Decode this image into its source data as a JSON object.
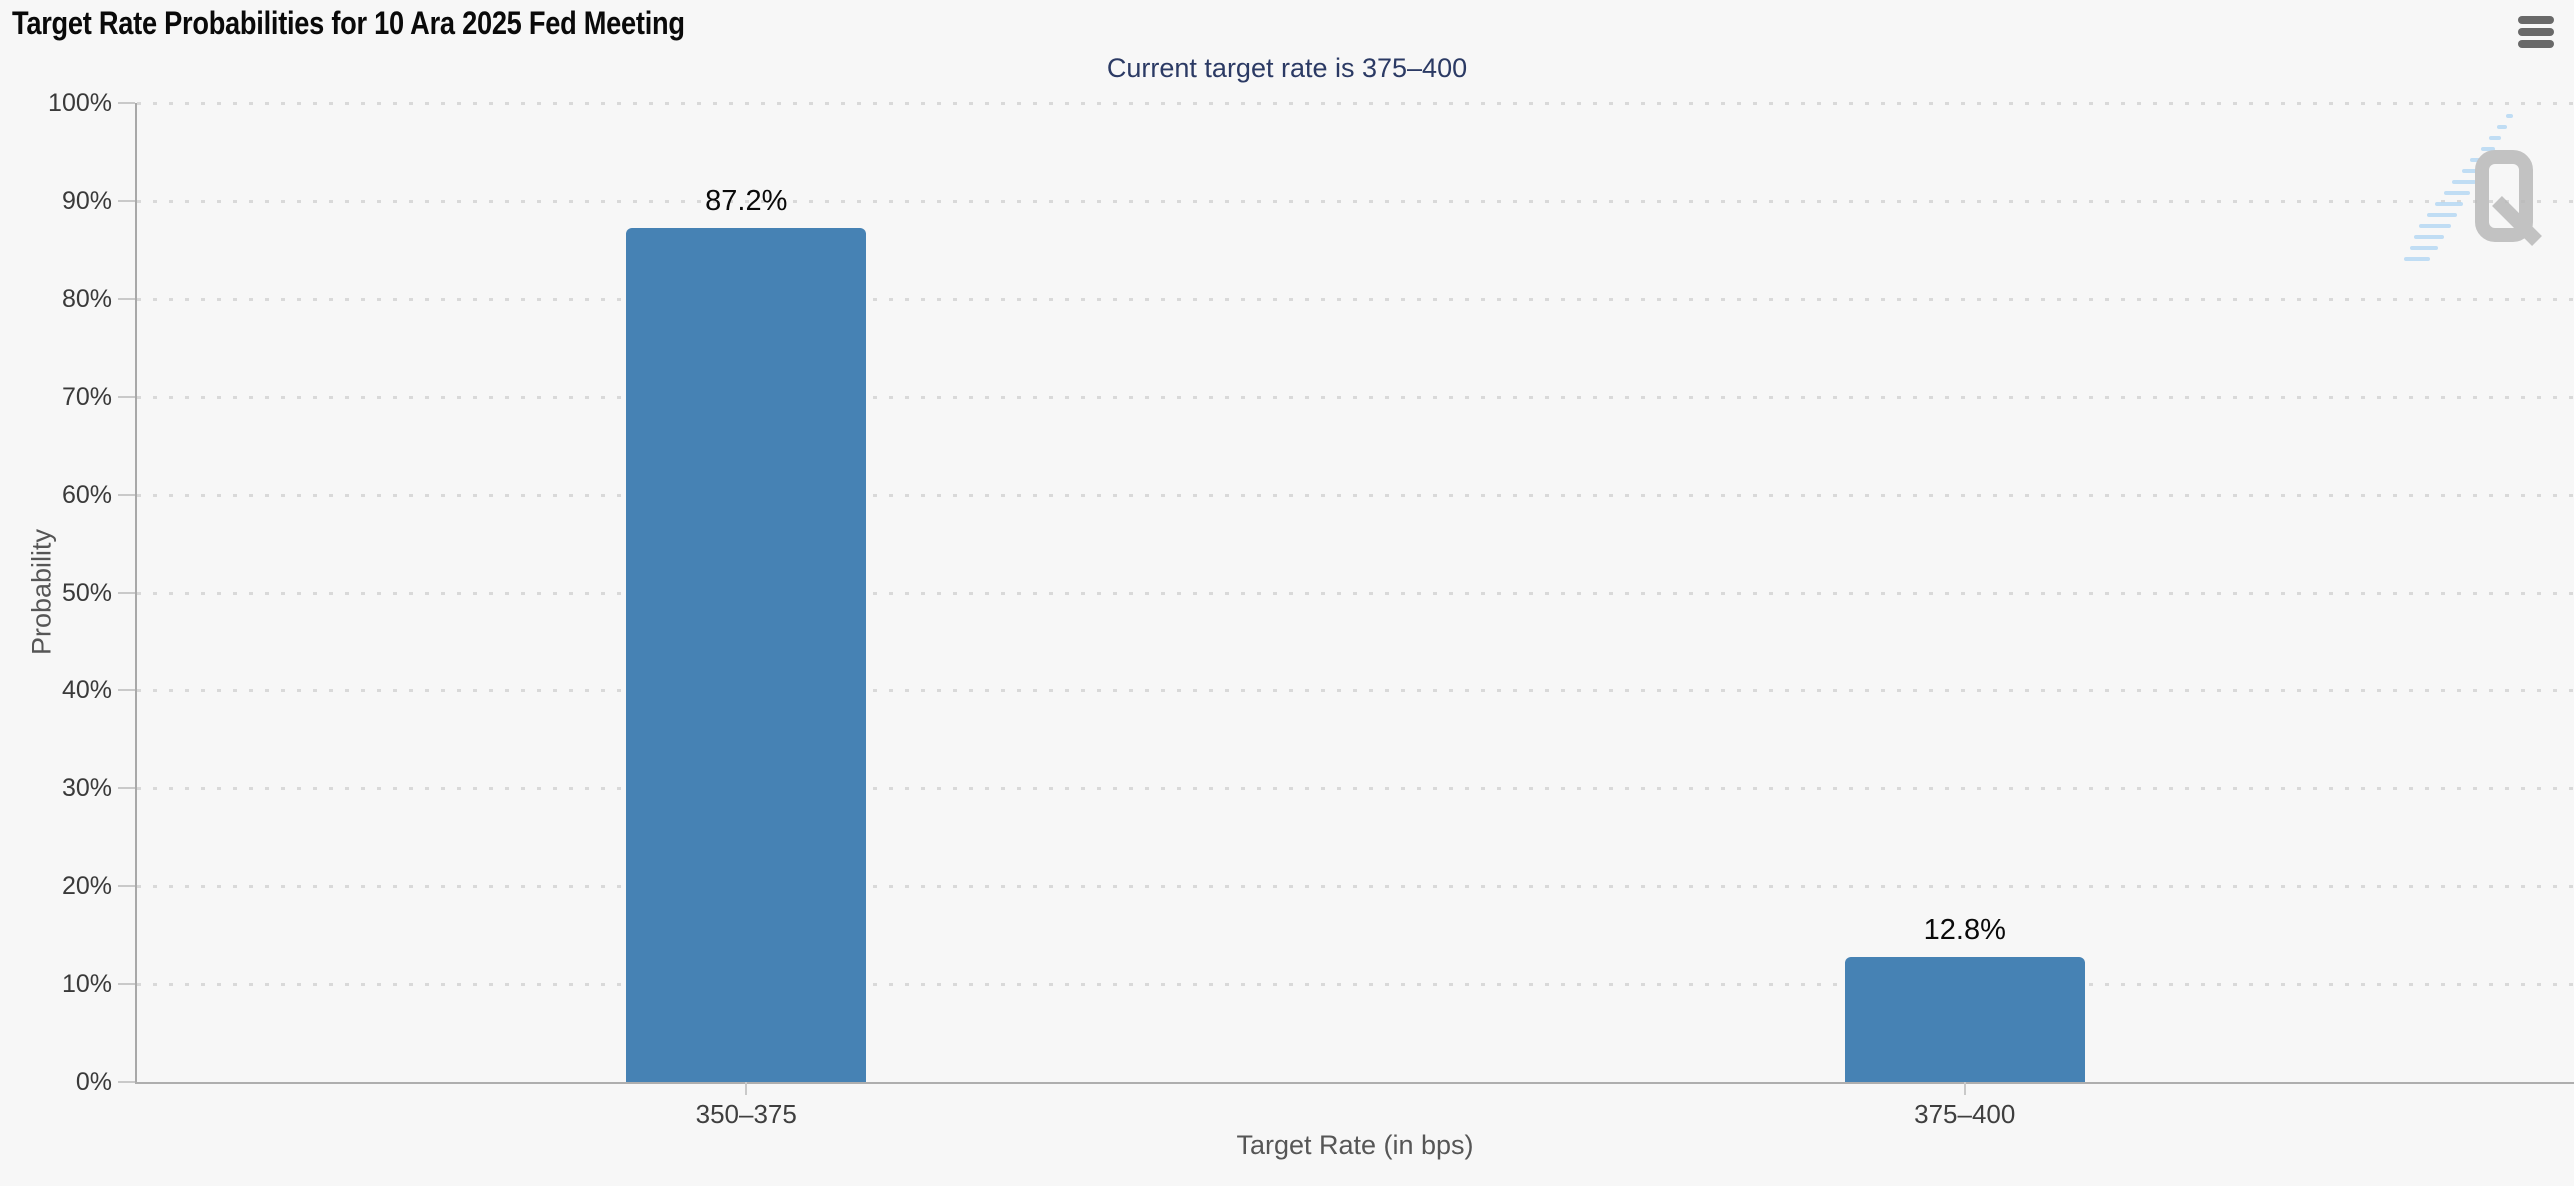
{
  "header": {
    "menu_icon": "hamburger"
  },
  "chart_data": {
    "type": "bar",
    "title": "Target Rate Probabilities for 10 Ara 2025 Fed Meeting",
    "subtitle": "Current target rate is 375–400",
    "xlabel": "Target Rate (in bps)",
    "ylabel": "Probability",
    "categories": [
      "350–375",
      "375–400"
    ],
    "values": [
      87.2,
      12.8
    ],
    "value_labels": [
      "87.2%",
      "12.8%"
    ],
    "ylim": [
      0,
      100
    ],
    "y_ticks": [
      "0%",
      "10%",
      "20%",
      "30%",
      "40%",
      "50%",
      "60%",
      "70%",
      "80%",
      "90%",
      "100%"
    ],
    "grid": "horizontal-dotted",
    "legend": "none",
    "bar_color": "#4682b4"
  },
  "watermark": {
    "text": "Q"
  },
  "colors": {
    "background": "#f7f7f7",
    "bar": "#4682b4",
    "subtitle": "#2b3a64",
    "axis_line": "#a8a8a8",
    "gridline": "#d9d9d9",
    "watermark_gray": "#b9b9b9",
    "watermark_blue": "#b7d9f4"
  }
}
